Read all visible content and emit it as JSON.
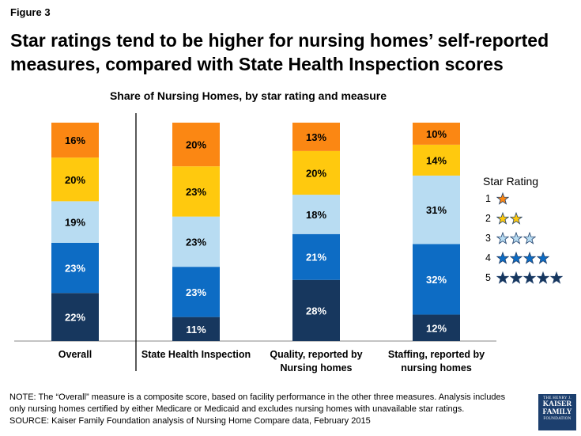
{
  "figure_label": "Figure 3",
  "title": "Star ratings tend to be higher for nursing homes’ self-reported measures, compared with State Health Inspection scores",
  "chart_data": {
    "type": "bar",
    "stacked": true,
    "title": "Share of Nursing Homes, by star rating and measure",
    "categories": [
      "Overall",
      "State Health Inspection",
      "Quality, reported by\nNursing homes",
      "Staffing, reported by\nnursing homes"
    ],
    "series": [
      {
        "name": "5",
        "color": "#17375e",
        "values": [
          22,
          11,
          28,
          12
        ],
        "labels": [
          "22%",
          "11%",
          "28%",
          "12%"
        ]
      },
      {
        "name": "4",
        "color": "#0d6cc4",
        "values": [
          23,
          23,
          21,
          32
        ],
        "labels": [
          "23%",
          "23%",
          "21%",
          "32%"
        ]
      },
      {
        "name": "3",
        "color": "#b8dcf2",
        "values": [
          19,
          23,
          18,
          31
        ],
        "labels": [
          "19%",
          "23%",
          "18%",
          "31%"
        ]
      },
      {
        "name": "2",
        "color": "#ffc90e",
        "values": [
          20,
          23,
          20,
          14
        ],
        "labels": [
          "20%",
          "23%",
          "20%",
          "14%"
        ]
      },
      {
        "name": "1",
        "color": "#fb8713",
        "values": [
          16,
          20,
          13,
          10
        ],
        "labels": [
          "16%",
          "20%",
          "13%",
          "10%"
        ]
      }
    ],
    "ylim": [
      0,
      100
    ],
    "legend": {
      "title": "Star Rating",
      "position": "right"
    }
  },
  "legend_items": [
    {
      "label": "1",
      "stars": 1,
      "color": "#fb8713"
    },
    {
      "label": "2",
      "stars": 2,
      "color": "#ffc90e"
    },
    {
      "label": "3",
      "stars": 3,
      "color": "#b8dcf2"
    },
    {
      "label": "4",
      "stars": 4,
      "color": "#0d6cc4"
    },
    {
      "label": "5",
      "stars": 5,
      "color": "#17375e"
    }
  ],
  "note_lines": [
    "NOTE: The “Overall” measure is a composite score, based on facility performance in the other three measures. Analysis includes",
    "only nursing homes certified by either Medicare or Medicaid and excludes nursing homes with unavailable star ratings.",
    "SOURCE: Kaiser Family Foundation analysis of Nursing Home Compare data, February 2015"
  ],
  "logo": {
    "line1": "THE HENRY J.",
    "line2": "KAISER",
    "line3": "FAMILY",
    "line4": "FOUNDATION"
  }
}
